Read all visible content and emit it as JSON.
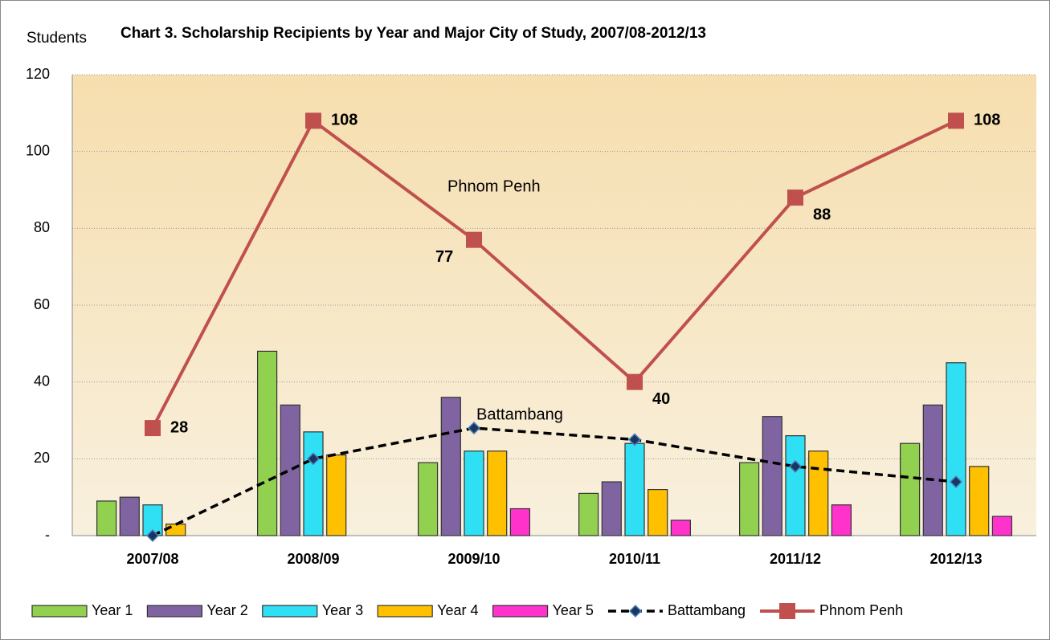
{
  "chart_data": {
    "type": "bar",
    "title": "Chart 3. Scholarship Recipients by Year and Major City of Study, 2007/08-2012/13",
    "y_label": "Students",
    "categories": [
      "2007/08",
      "2008/09",
      "2009/10",
      "2010/11",
      "2011/12",
      "2012/13"
    ],
    "series": [
      {
        "name": "Year 1",
        "type": "bar",
        "color": "#92d050",
        "values": [
          9,
          48,
          19,
          11,
          19,
          24
        ]
      },
      {
        "name": "Year 2",
        "type": "bar",
        "color": "#8064a2",
        "values": [
          10,
          34,
          36,
          14,
          31,
          34
        ]
      },
      {
        "name": "Year 3",
        "type": "bar",
        "color": "#2fe0f5",
        "values": [
          8,
          27,
          22,
          24,
          26,
          45
        ]
      },
      {
        "name": "Year 4",
        "type": "bar",
        "color": "#ffc000",
        "values": [
          3,
          21,
          22,
          12,
          22,
          18
        ]
      },
      {
        "name": "Year 5",
        "type": "bar",
        "color": "#ff33cc",
        "values": [
          null,
          null,
          7,
          4,
          8,
          5
        ]
      },
      {
        "name": "Battambang",
        "type": "line",
        "color": "#000000",
        "marker_color": "#17375e",
        "dashed": true,
        "values": [
          0,
          20,
          28,
          25,
          18,
          14
        ]
      },
      {
        "name": "Phnom Penh",
        "type": "line",
        "color": "#c0504d",
        "marker_color": "#c0504d",
        "data_labels": true,
        "values": [
          28,
          108,
          77,
          40,
          88,
          108
        ]
      }
    ],
    "annotations": [
      "Phnom Penh",
      "Battambang"
    ],
    "ylim": [
      0,
      120
    ],
    "yticks": [
      {
        "value": 0,
        "label": "-"
      },
      20,
      40,
      60,
      80,
      100,
      120
    ],
    "grid": true,
    "legend": "bottom"
  }
}
